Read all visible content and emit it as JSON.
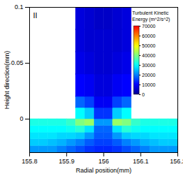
{
  "chart_data": {
    "type": "heatmap",
    "title": "II",
    "x_label": "Radial position(mm)",
    "y_label": "Height direction(mm)",
    "xlim": [
      155.8,
      156.2
    ],
    "ylim": [
      -0.03,
      0.1
    ],
    "xticks": [
      155.8,
      155.9,
      156,
      156.1,
      156.2
    ],
    "yticks": [
      0,
      0.05,
      0.1
    ],
    "x_edges": [
      155.8,
      155.825,
      155.85,
      155.875,
      155.9,
      155.925,
      155.95,
      155.975,
      156,
      156.025,
      156.05,
      156.075,
      156.1,
      156.125,
      156.15,
      156.175,
      156.2
    ],
    "y_edges": [
      -0.03,
      -0.024,
      -0.018,
      -0.012,
      -0.006,
      0,
      0.01,
      0.02,
      0.04,
      0.06,
      0.08,
      0.1
    ],
    "values": [
      [
        22000,
        22000,
        22000,
        20000,
        18000,
        16000,
        14000,
        13000,
        13000,
        14000,
        16000,
        18000,
        20000,
        22000,
        22000,
        22000
      ],
      [
        26000,
        26000,
        25000,
        24000,
        22000,
        20000,
        17000,
        15000,
        15000,
        17000,
        20000,
        22000,
        24000,
        25000,
        26000,
        26000
      ],
      [
        28000,
        28000,
        28000,
        27000,
        27000,
        26000,
        22000,
        17000,
        17000,
        22000,
        26000,
        27000,
        27000,
        28000,
        28000,
        28000
      ],
      [
        30000,
        30000,
        30000,
        30000,
        31000,
        33000,
        28000,
        18000,
        18000,
        28000,
        33000,
        31000,
        30000,
        30000,
        30000,
        30000
      ],
      [
        32000,
        32000,
        32000,
        32000,
        34000,
        40000,
        42000,
        22000,
        22000,
        42000,
        40000,
        34000,
        32000,
        32000,
        32000,
        32000
      ],
      [
        null,
        null,
        null,
        null,
        null,
        30000,
        26000,
        14000,
        14000,
        26000,
        30000,
        null,
        null,
        null,
        null,
        null
      ],
      [
        null,
        null,
        null,
        null,
        null,
        18000,
        15000,
        9000,
        9000,
        15000,
        18000,
        null,
        null,
        null,
        null,
        null
      ],
      [
        null,
        null,
        null,
        null,
        null,
        10000,
        9000,
        7000,
        7000,
        9000,
        10000,
        null,
        null,
        null,
        null,
        null
      ],
      [
        null,
        null,
        null,
        null,
        null,
        8000,
        7000,
        6000,
        6000,
        7000,
        8000,
        null,
        null,
        null,
        null,
        null
      ],
      [
        null,
        null,
        null,
        null,
        null,
        7000,
        6000,
        6000,
        6000,
        6000,
        7000,
        null,
        null,
        null,
        null,
        null
      ],
      [
        null,
        null,
        null,
        null,
        null,
        7000,
        6000,
        5000,
        5000,
        6000,
        7000,
        null,
        null,
        null,
        null,
        null
      ]
    ],
    "colorbar": {
      "label": "Turbulent Kinetic Energy (m^2/s^2)",
      "range": [
        0,
        70000
      ],
      "ticks": [
        0,
        10000,
        20000,
        30000,
        40000,
        50000,
        60000,
        70000
      ]
    }
  }
}
